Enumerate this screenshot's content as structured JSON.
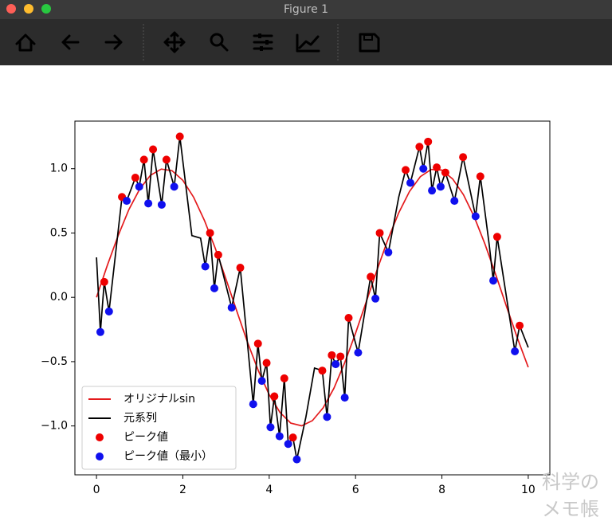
{
  "window": {
    "title": "Figure 1"
  },
  "watermark": [
    "科学の",
    "メモ帳"
  ],
  "chart_data": {
    "type": "line",
    "xlim": [
      -0.5,
      10.5
    ],
    "ylim": [
      -1.38,
      1.37
    ],
    "xticks": [
      0,
      2,
      4,
      6,
      8,
      10
    ],
    "yticks": [
      {
        "value": -1,
        "label": "−1.0"
      },
      {
        "value": -0.5,
        "label": "−0.5"
      },
      {
        "value": 0,
        "label": "0.0"
      },
      {
        "value": 0.5,
        "label": "0.5"
      },
      {
        "value": 1,
        "label": "1.0"
      }
    ],
    "legend": "lower left",
    "series": [
      {
        "name": "オリジナルsin",
        "color": "#e41a1c",
        "mode": "line",
        "x": [
          0,
          0.25,
          0.5,
          0.75,
          1,
          1.25,
          1.5,
          1.75,
          2,
          2.25,
          2.5,
          2.75,
          3,
          3.25,
          3.5,
          3.75,
          4,
          4.25,
          4.5,
          4.75,
          5,
          5.25,
          5.5,
          5.75,
          6,
          6.25,
          6.5,
          6.75,
          7,
          7.25,
          7.5,
          7.75,
          8,
          8.25,
          8.5,
          8.75,
          9,
          9.25,
          9.5,
          9.75,
          10
        ],
        "values": [
          0,
          0.247,
          0.479,
          0.682,
          0.841,
          0.949,
          0.997,
          0.984,
          0.909,
          0.778,
          0.598,
          0.382,
          0.141,
          -0.108,
          -0.351,
          -0.572,
          -0.757,
          -0.895,
          -0.978,
          -0.999,
          -0.959,
          -0.859,
          -0.706,
          -0.508,
          -0.279,
          -0.033,
          0.215,
          0.45,
          0.657,
          0.823,
          0.938,
          0.994,
          0.989,
          0.92,
          0.798,
          0.624,
          0.412,
          0.173,
          -0.075,
          -0.319,
          -0.544
        ]
      },
      {
        "name": "元系列",
        "color": "#000000",
        "mode": "line",
        "x": [
          0,
          0.09,
          0.18,
          0.29,
          0.59,
          0.7,
          0.9,
          0.99,
          1.1,
          1.2,
          1.31,
          1.51,
          1.62,
          1.8,
          1.93,
          2.21,
          2.41,
          2.52,
          2.63,
          2.73,
          2.82,
          3.13,
          3.33,
          3.63,
          3.74,
          3.83,
          3.94,
          4.03,
          4.12,
          4.24,
          4.35,
          4.44,
          4.55,
          4.64,
          4.85,
          5.05,
          5.23,
          5.34,
          5.45,
          5.54,
          5.65,
          5.75,
          5.84,
          6.06,
          6.35,
          6.46,
          6.56,
          6.76,
          7.0,
          7.16,
          7.27,
          7.48,
          7.57,
          7.68,
          7.77,
          7.88,
          7.97,
          8.08,
          8.29,
          8.49,
          8.78,
          8.89,
          9.1,
          9.19,
          9.28,
          9.69,
          9.8,
          10
        ],
        "values": [
          0.31,
          -0.27,
          0.12,
          -0.11,
          0.78,
          0.75,
          0.93,
          0.86,
          1.07,
          0.73,
          1.15,
          0.72,
          1.07,
          0.86,
          1.25,
          0.48,
          0.46,
          0.24,
          0.5,
          0.07,
          0.33,
          -0.08,
          0.23,
          -0.83,
          -0.36,
          -0.65,
          -0.51,
          -1.01,
          -0.77,
          -1.08,
          -0.63,
          -1.14,
          -1.09,
          -1.26,
          -0.93,
          -0.55,
          -0.57,
          -0.93,
          -0.45,
          -0.52,
          -0.46,
          -0.78,
          -0.16,
          -0.43,
          0.16,
          -0.01,
          0.5,
          0.35,
          0.78,
          0.99,
          0.89,
          1.17,
          1.0,
          1.21,
          0.83,
          1.01,
          0.86,
          0.97,
          0.75,
          1.09,
          0.63,
          0.94,
          0.4,
          0.13,
          0.47,
          -0.42,
          -0.22,
          -0.39
        ]
      },
      {
        "name": "ピーク値",
        "color": "#ee0000",
        "mode": "markers",
        "x": [
          0.18,
          0.59,
          0.9,
          1.1,
          1.31,
          1.62,
          1.93,
          2.63,
          2.82,
          3.33,
          3.74,
          3.94,
          4.12,
          4.35,
          4.55,
          5.23,
          5.45,
          5.65,
          5.84,
          6.35,
          6.56,
          7.16,
          7.48,
          7.68,
          7.88,
          8.08,
          8.49,
          8.89,
          9.28,
          9.8
        ],
        "values": [
          0.12,
          0.78,
          0.93,
          1.07,
          1.15,
          1.07,
          1.25,
          0.5,
          0.33,
          0.23,
          -0.36,
          -0.51,
          -0.77,
          -0.63,
          -1.09,
          -0.57,
          -0.45,
          -0.46,
          -0.16,
          0.16,
          0.5,
          0.99,
          1.17,
          1.21,
          1.01,
          0.97,
          1.09,
          0.94,
          0.47,
          -0.22
        ]
      },
      {
        "name": "ピーク値（最小）",
        "color": "#1010ee",
        "mode": "markers",
        "x": [
          0.09,
          0.29,
          0.7,
          0.99,
          1.2,
          1.51,
          1.8,
          2.52,
          2.73,
          3.13,
          3.63,
          3.83,
          4.03,
          4.24,
          4.44,
          4.64,
          5.34,
          5.54,
          5.75,
          6.06,
          6.46,
          6.76,
          7.27,
          7.57,
          7.77,
          7.97,
          8.29,
          8.78,
          9.19,
          9.69
        ],
        "values": [
          -0.27,
          -0.11,
          0.75,
          0.86,
          0.73,
          0.72,
          0.86,
          0.24,
          0.07,
          -0.08,
          -0.83,
          -0.65,
          -1.01,
          -1.08,
          -1.14,
          -1.26,
          -0.93,
          -0.52,
          -0.78,
          -0.43,
          -0.01,
          0.35,
          0.89,
          1.0,
          0.83,
          0.86,
          0.75,
          0.63,
          0.13,
          -0.42
        ]
      }
    ]
  }
}
